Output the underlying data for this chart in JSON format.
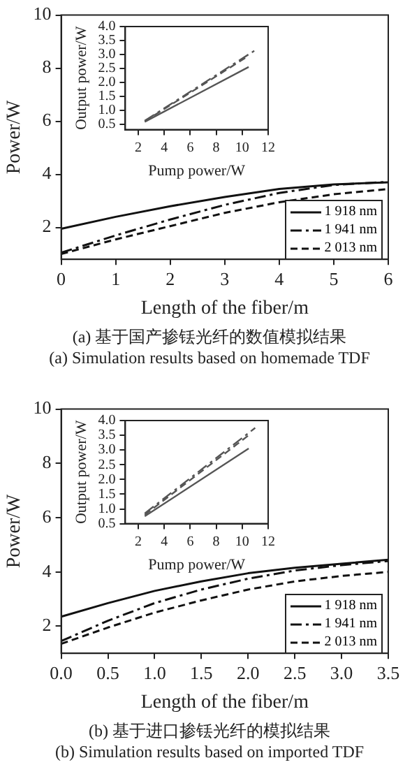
{
  "chart_data": [
    {
      "type": "line",
      "xlabel": "Length of the fiber/m",
      "ylabel": "Power/W",
      "x": [
        0,
        1,
        2,
        3,
        4,
        5,
        6
      ],
      "xlim": [
        0,
        6
      ],
      "xticks": [
        0,
        1,
        2,
        3,
        4,
        5,
        6
      ],
      "ylim": [
        0.8,
        10
      ],
      "yticks": [
        2,
        4,
        6,
        8,
        10
      ],
      "grid": false,
      "marker": "none",
      "legend": "bottom right",
      "annotations": [
        "(a) 基于国产掺铥光纤的数值模拟结果",
        "(a) Simulation results based on homemade TDF"
      ],
      "series": [
        {
          "name": "1 918 nm",
          "color": "#111111",
          "line_style": "solid",
          "values": [
            1.95,
            2.4,
            2.8,
            3.15,
            3.45,
            3.62,
            3.7
          ]
        },
        {
          "name": "1 941 nm",
          "color": "#111111",
          "line_style": "dashdot",
          "values": [
            1.05,
            1.7,
            2.3,
            2.85,
            3.3,
            3.6,
            3.72
          ]
        },
        {
          "name": "2 013 nm",
          "color": "#111111",
          "line_style": "dashed",
          "values": [
            1.0,
            1.55,
            2.05,
            2.55,
            2.95,
            3.25,
            3.45
          ]
        }
      ]
    },
    {
      "type": "line",
      "xlabel": "Pump power/W",
      "ylabel": "Output power/W",
      "xlim": [
        1,
        12
      ],
      "xticks": [
        2,
        4,
        6,
        8,
        10,
        12
      ],
      "ylim": [
        0.3,
        4
      ],
      "yticks": [
        {
          "value": 0.5,
          "label": "0.5"
        },
        {
          "value": 1,
          "label": "1.0"
        },
        {
          "value": 1.5,
          "label": "1.5"
        },
        {
          "value": 2,
          "label": "2.0"
        },
        {
          "value": 2.5,
          "label": "2.5"
        },
        {
          "value": 3,
          "label": "3.0"
        },
        {
          "value": 3.5,
          "label": "3.5"
        },
        {
          "value": 4,
          "label": "4.0"
        }
      ],
      "grid": false,
      "marker": "none",
      "series": [
        {
          "color": "#555555",
          "line_style": "solid",
          "x": [
            2.5,
            10.5
          ],
          "values": [
            0.58,
            2.55
          ]
        },
        {
          "color": "#555555",
          "line_style": "dashdot",
          "x": [
            2.5,
            11
          ],
          "values": [
            0.62,
            3.15
          ]
        },
        {
          "color": "#555555",
          "line_style": "dashed",
          "x": [
            2.5,
            10.5
          ],
          "values": [
            0.6,
            2.95
          ]
        }
      ]
    },
    {
      "type": "line",
      "xlabel": "Length of the fiber/m",
      "ylabel": "Power/W",
      "x": [
        0,
        0.5,
        1,
        1.5,
        2,
        2.5,
        3,
        3.5
      ],
      "xlim": [
        0,
        3.5
      ],
      "xticks": [
        {
          "value": 0,
          "label": "0.0"
        },
        {
          "value": 0.5,
          "label": "0.5"
        },
        {
          "value": 1,
          "label": "1.0"
        },
        {
          "value": 1.5,
          "label": "1.5"
        },
        {
          "value": 2,
          "label": "2.0"
        },
        {
          "value": 2.5,
          "label": "2.5"
        },
        {
          "value": 3,
          "label": "3.0"
        },
        {
          "value": 3.5,
          "label": "3.5"
        }
      ],
      "ylim": [
        1,
        10
      ],
      "yticks": [
        2,
        4,
        6,
        8,
        10
      ],
      "grid": false,
      "marker": "none",
      "legend": "bottom right",
      "annotations": [
        "(b) 基于进口掺铥光纤的模拟结果",
        "(b) Simulation results based on imported TDF"
      ],
      "series": [
        {
          "name": "1 918 nm",
          "color": "#111111",
          "line_style": "solid",
          "values": [
            2.35,
            2.85,
            3.3,
            3.65,
            3.95,
            4.15,
            4.3,
            4.45
          ]
        },
        {
          "name": "1 941 nm",
          "color": "#111111",
          "line_style": "dashdot",
          "values": [
            1.45,
            2.2,
            2.85,
            3.35,
            3.75,
            4.05,
            4.25,
            4.4
          ]
        },
        {
          "name": "2 013 nm",
          "color": "#111111",
          "line_style": "dashed",
          "values": [
            1.35,
            1.95,
            2.5,
            2.95,
            3.35,
            3.65,
            3.85,
            4.0
          ]
        }
      ]
    },
    {
      "type": "line",
      "xlabel": "Pump power/W",
      "ylabel": "Output power/W",
      "xlim": [
        1,
        12
      ],
      "xticks": [
        2,
        4,
        6,
        8,
        10,
        12
      ],
      "ylim": [
        0.5,
        4
      ],
      "yticks": [
        {
          "value": 0.5,
          "label": "0.5"
        },
        {
          "value": 1,
          "label": "1.0"
        },
        {
          "value": 1.5,
          "label": "1.5"
        },
        {
          "value": 2,
          "label": "2.0"
        },
        {
          "value": 2.5,
          "label": "2.5"
        },
        {
          "value": 3,
          "label": "3.0"
        },
        {
          "value": 3.5,
          "label": "3.5"
        },
        {
          "value": 4,
          "label": "4.0"
        }
      ],
      "grid": false,
      "marker": "none",
      "series": [
        {
          "color": "#555555",
          "line_style": "solid",
          "x": [
            2.5,
            10.5
          ],
          "values": [
            0.75,
            3.05
          ]
        },
        {
          "color": "#555555",
          "line_style": "dashdot",
          "x": [
            2.5,
            11
          ],
          "values": [
            0.85,
            3.75
          ]
        },
        {
          "color": "#555555",
          "line_style": "dashed",
          "x": [
            2.5,
            10.5
          ],
          "values": [
            0.8,
            3.5
          ]
        }
      ]
    }
  ]
}
